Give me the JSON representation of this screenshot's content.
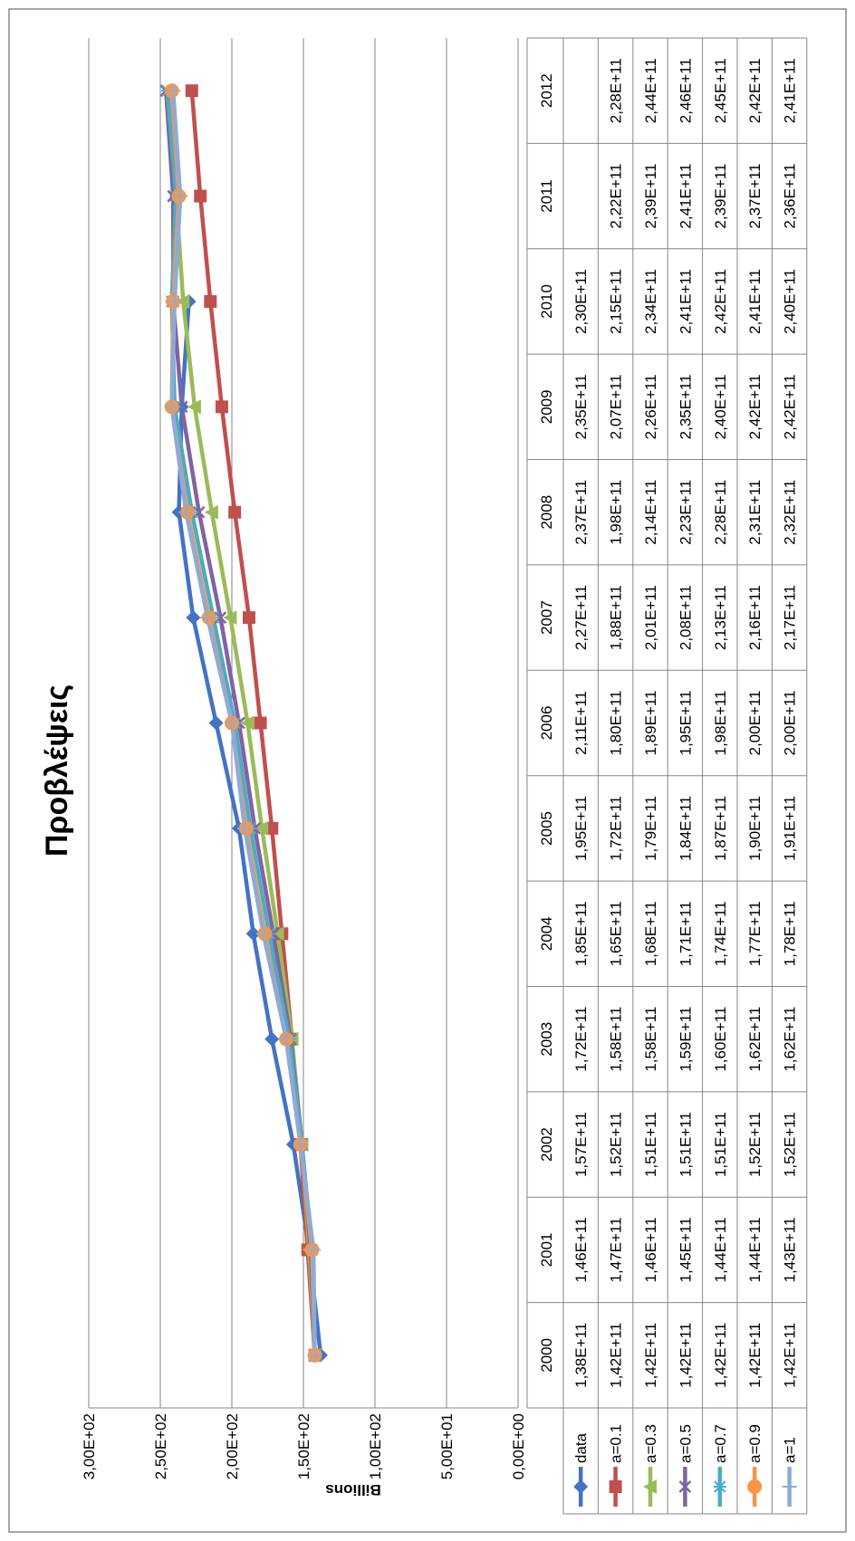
{
  "chart_data": {
    "type": "line",
    "title": "Προβλέψεις",
    "ylabel": "Billions",
    "ylim": [
      0,
      300
    ],
    "y_ticks": [
      "0,00E+00",
      "5,00E+01",
      "1,00E+02",
      "1,50E+02",
      "2,00E+02",
      "2,50E+02",
      "3,00E+02"
    ],
    "categories": [
      "2000",
      "2001",
      "2002",
      "2003",
      "2004",
      "2005",
      "2006",
      "2007",
      "2008",
      "2009",
      "2010",
      "2011",
      "2012"
    ],
    "grid": true,
    "legend": "data-table",
    "series": [
      {
        "name": "data",
        "color": "#4472C4",
        "marker": "diamond",
        "values": [
          138,
          146,
          157,
          172,
          185,
          195,
          211,
          227,
          237,
          235,
          230,
          null,
          null
        ],
        "labels": [
          "1,38E+11",
          "1,46E+11",
          "1,57E+11",
          "1,72E+11",
          "1,85E+11",
          "1,95E+11",
          "2,11E+11",
          "2,27E+11",
          "2,37E+11",
          "2,35E+11",
          "2,30E+11",
          "",
          ""
        ]
      },
      {
        "name": "a=0.1",
        "color": "#C0504D",
        "marker": "square",
        "values": [
          142,
          147,
          152,
          158,
          165,
          172,
          180,
          188,
          198,
          207,
          215,
          222,
          228
        ],
        "labels": [
          "1,42E+11",
          "1,47E+11",
          "1,52E+11",
          "1,58E+11",
          "1,65E+11",
          "1,72E+11",
          "1,80E+11",
          "1,88E+11",
          "1,98E+11",
          "2,07E+11",
          "2,15E+11",
          "2,22E+11",
          "2,28E+11"
        ]
      },
      {
        "name": "a=0.3",
        "color": "#9BBB59",
        "marker": "triangle",
        "values": [
          142,
          146,
          151,
          158,
          168,
          179,
          189,
          201,
          214,
          226,
          234,
          239,
          244
        ],
        "labels": [
          "1,42E+11",
          "1,46E+11",
          "1,51E+11",
          "1,58E+11",
          "1,68E+11",
          "1,79E+11",
          "1,89E+11",
          "2,01E+11",
          "2,14E+11",
          "2,26E+11",
          "2,34E+11",
          "2,39E+11",
          "2,44E+11"
        ]
      },
      {
        "name": "a=0.5",
        "color": "#8064A2",
        "marker": "x",
        "values": [
          142,
          145,
          151,
          159,
          171,
          184,
          195,
          208,
          223,
          235,
          241,
          241,
          246
        ],
        "labels": [
          "1,42E+11",
          "1,45E+11",
          "1,51E+11",
          "1,59E+11",
          "1,71E+11",
          "1,84E+11",
          "1,95E+11",
          "2,08E+11",
          "2,23E+11",
          "2,35E+11",
          "2,41E+11",
          "2,41E+11",
          "2,46E+11"
        ]
      },
      {
        "name": "a=0.7",
        "color": "#4BACC6",
        "marker": "star",
        "values": [
          142,
          144,
          151,
          160,
          174,
          187,
          198,
          213,
          228,
          240,
          242,
          239,
          245
        ],
        "labels": [
          "1,42E+11",
          "1,44E+11",
          "1,51E+11",
          "1,60E+11",
          "1,74E+11",
          "1,87E+11",
          "1,98E+11",
          "2,13E+11",
          "2,28E+11",
          "2,40E+11",
          "2,42E+11",
          "2,39E+11",
          "2,45E+11"
        ]
      },
      {
        "name": "a=0.9",
        "color": "#F79646",
        "marker": "circle",
        "values": [
          142,
          144,
          152,
          162,
          177,
          190,
          200,
          216,
          231,
          242,
          241,
          237,
          242
        ],
        "labels": [
          "1,42E+11",
          "1,44E+11",
          "1,52E+11",
          "1,62E+11",
          "1,77E+11",
          "1,90E+11",
          "2,00E+11",
          "2,16E+11",
          "2,31E+11",
          "2,42E+11",
          "2,41E+11",
          "2,37E+11",
          "2,42E+11"
        ]
      },
      {
        "name": "a=1",
        "color": "#8EAADB",
        "marker": "plus",
        "values": [
          142,
          143,
          152,
          162,
          178,
          191,
          200,
          217,
          232,
          242,
          240,
          236,
          241
        ],
        "labels": [
          "1,42E+11",
          "1,43E+11",
          "1,52E+11",
          "1,62E+11",
          "1,78E+11",
          "1,91E+11",
          "2,00E+11",
          "2,17E+11",
          "2,32E+11",
          "2,42E+11",
          "2,40E+11",
          "2,36E+11",
          "2,41E+11"
        ]
      }
    ]
  }
}
